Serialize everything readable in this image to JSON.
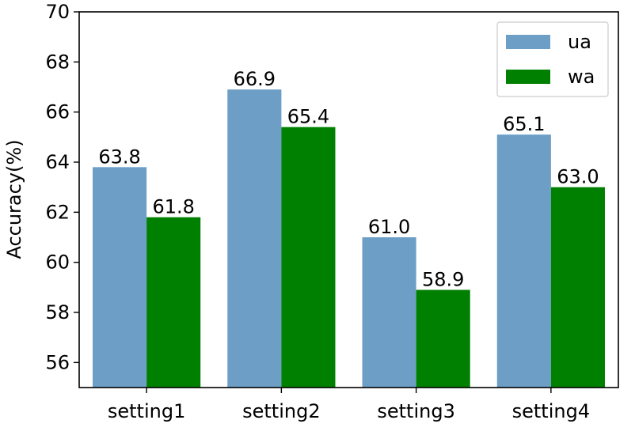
{
  "chart_data": {
    "type": "bar",
    "title": "",
    "xlabel": "",
    "ylabel": "Accuracy(%)",
    "categories": [
      "setting1",
      "setting2",
      "setting3",
      "setting4"
    ],
    "series": [
      {
        "name": "ua",
        "color": "#6c9ec6",
        "values": [
          63.8,
          66.9,
          61.0,
          65.1
        ],
        "labels": [
          "63.8",
          "66.9",
          "61.0",
          "65.1"
        ]
      },
      {
        "name": "wa",
        "color": "#008000",
        "values": [
          61.8,
          65.4,
          58.9,
          63.0
        ],
        "labels": [
          "61.8",
          "65.4",
          "58.9",
          "63.0"
        ]
      }
    ],
    "ylim": [
      55,
      70
    ],
    "yticks": [
      56,
      58,
      60,
      62,
      64,
      66,
      68,
      70
    ],
    "grid": false,
    "legend_position": "top-right"
  }
}
